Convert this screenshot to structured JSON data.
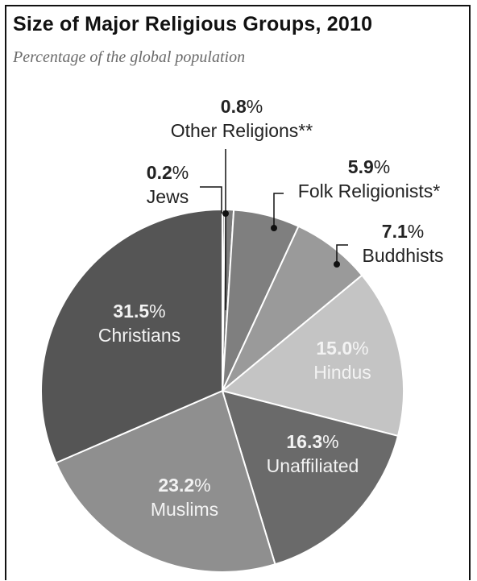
{
  "title": "Size of Major Religious Groups, 2010",
  "subtitle": "Percentage of the global population",
  "chart_data": {
    "type": "pie",
    "title": "Size of Major Religious Groups, 2010",
    "subtitle": "Percentage of the global population",
    "slices": [
      {
        "name": "Jews",
        "value": 0.2,
        "value_label": "0.2",
        "color": "#6e6e6e"
      },
      {
        "name": "Other Religions**",
        "value": 0.8,
        "value_label": "0.8",
        "color": "#7b7b7b"
      },
      {
        "name": "Folk Religionists*",
        "value": 5.9,
        "value_label": "5.9",
        "color": "#7f7f7f"
      },
      {
        "name": "Buddhists",
        "value": 7.1,
        "value_label": "7.1",
        "color": "#9a9a9a"
      },
      {
        "name": "Hindus",
        "value": 15.0,
        "value_label": "15.0",
        "color": "#c4c4c4"
      },
      {
        "name": "Unaffiliated",
        "value": 16.3,
        "value_label": "16.3",
        "color": "#6a6a6a"
      },
      {
        "name": "Muslims",
        "value": 23.2,
        "value_label": "23.2",
        "color": "#8f8f8f"
      },
      {
        "name": "Christians",
        "value": 31.5,
        "value_label": "31.5",
        "color": "#555555"
      }
    ],
    "percent_sign": "%"
  }
}
